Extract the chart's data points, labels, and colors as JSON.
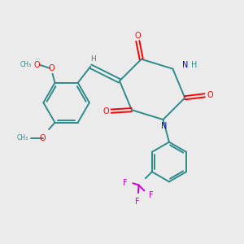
{
  "background_color": "#ebebeb",
  "bond_color": "#2d8b8b",
  "o_color": "#ff0000",
  "n_color": "#0000cc",
  "f_color": "#cc00cc",
  "h_color": "#2d8b8b",
  "figsize": [
    3.0,
    3.0
  ],
  "dpi": 100,
  "lw": 1.4,
  "fs": 7.0,
  "xlim": [
    0,
    10
  ],
  "ylim": [
    0,
    10
  ]
}
